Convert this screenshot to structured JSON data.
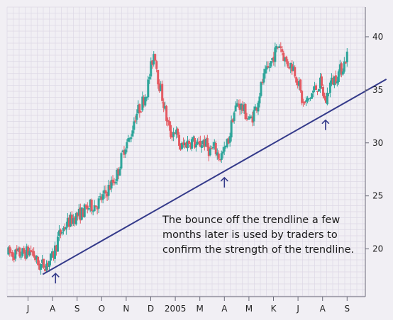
{
  "chart_data": {
    "type": "candlestick",
    "grid": true,
    "colors": {
      "background": "#f1eff4",
      "grid": "#ddd9e6",
      "axis": "#6a6a78",
      "up": "#2ea59a",
      "down": "#e45a62",
      "trendline": "#343a8a",
      "arrow": "#343a8a"
    },
    "ylim": [
      15.5,
      42.8
    ],
    "y_ticks": [
      20,
      25,
      30,
      35,
      40
    ],
    "y_tick_labels": [
      "20",
      "25",
      "30",
      "35",
      "40"
    ],
    "x_ticks": [
      "J",
      "A",
      "S",
      "O",
      "N",
      "D",
      "2005",
      "M",
      "A",
      "M",
      "K",
      "J",
      "A",
      "S"
    ],
    "trendline": {
      "x": [
        0.6,
        14.6
      ],
      "y": [
        17.6,
        36.0
      ]
    },
    "arrows": [
      {
        "x": 1.12,
        "label": ""
      },
      {
        "x": 8.0,
        "label": ""
      },
      {
        "x": 12.12,
        "label": ""
      }
    ],
    "annotation": {
      "lines": [
        "The bounce off the trendline a few",
        "months later is used by traders to",
        "confirm the strength of the trendline."
      ]
    },
    "anchors": [
      [
        -0.8,
        19.6
      ],
      [
        -0.35,
        19.5
      ],
      [
        0.15,
        19.8
      ],
      [
        0.45,
        18.4
      ],
      [
        0.75,
        18.6
      ],
      [
        1.0,
        19.2
      ],
      [
        1.25,
        21.2
      ],
      [
        1.55,
        22.3
      ],
      [
        1.9,
        23.0
      ],
      [
        2.2,
        23.4
      ],
      [
        2.5,
        24.0
      ],
      [
        2.8,
        24.2
      ],
      [
        3.1,
        25.0
      ],
      [
        3.3,
        25.8
      ],
      [
        3.6,
        26.8
      ],
      [
        3.95,
        29.8
      ],
      [
        4.15,
        30.3
      ],
      [
        4.35,
        32.5
      ],
      [
        4.6,
        33.5
      ],
      [
        4.85,
        35.0
      ],
      [
        5.0,
        37.0
      ],
      [
        5.15,
        38.8
      ],
      [
        5.3,
        36.0
      ],
      [
        5.5,
        34.0
      ],
      [
        5.65,
        32.2
      ],
      [
        5.8,
        30.8
      ],
      [
        6.0,
        31.2
      ],
      [
        6.2,
        29.5
      ],
      [
        6.45,
        30.0
      ],
      [
        6.7,
        30.2
      ],
      [
        6.9,
        29.6
      ],
      [
        7.15,
        30.2
      ],
      [
        7.4,
        29.2
      ],
      [
        7.6,
        29.5
      ],
      [
        7.8,
        28.6
      ],
      [
        8.0,
        29.2
      ],
      [
        8.2,
        30.5
      ],
      [
        8.35,
        32.6
      ],
      [
        8.55,
        33.8
      ],
      [
        8.75,
        33.2
      ],
      [
        9.05,
        32.0
      ],
      [
        9.3,
        33.4
      ],
      [
        9.55,
        35.8
      ],
      [
        9.8,
        37.0
      ],
      [
        10.0,
        38.2
      ],
      [
        10.25,
        39.4
      ],
      [
        10.5,
        37.6
      ],
      [
        10.8,
        37.2
      ],
      [
        11.0,
        35.8
      ],
      [
        11.2,
        33.6
      ],
      [
        11.4,
        33.9
      ],
      [
        11.6,
        34.8
      ],
      [
        11.9,
        35.6
      ],
      [
        12.12,
        33.8
      ],
      [
        12.3,
        35.5
      ],
      [
        12.6,
        36.4
      ],
      [
        12.85,
        37.3
      ],
      [
        13.0,
        38.3
      ]
    ]
  }
}
